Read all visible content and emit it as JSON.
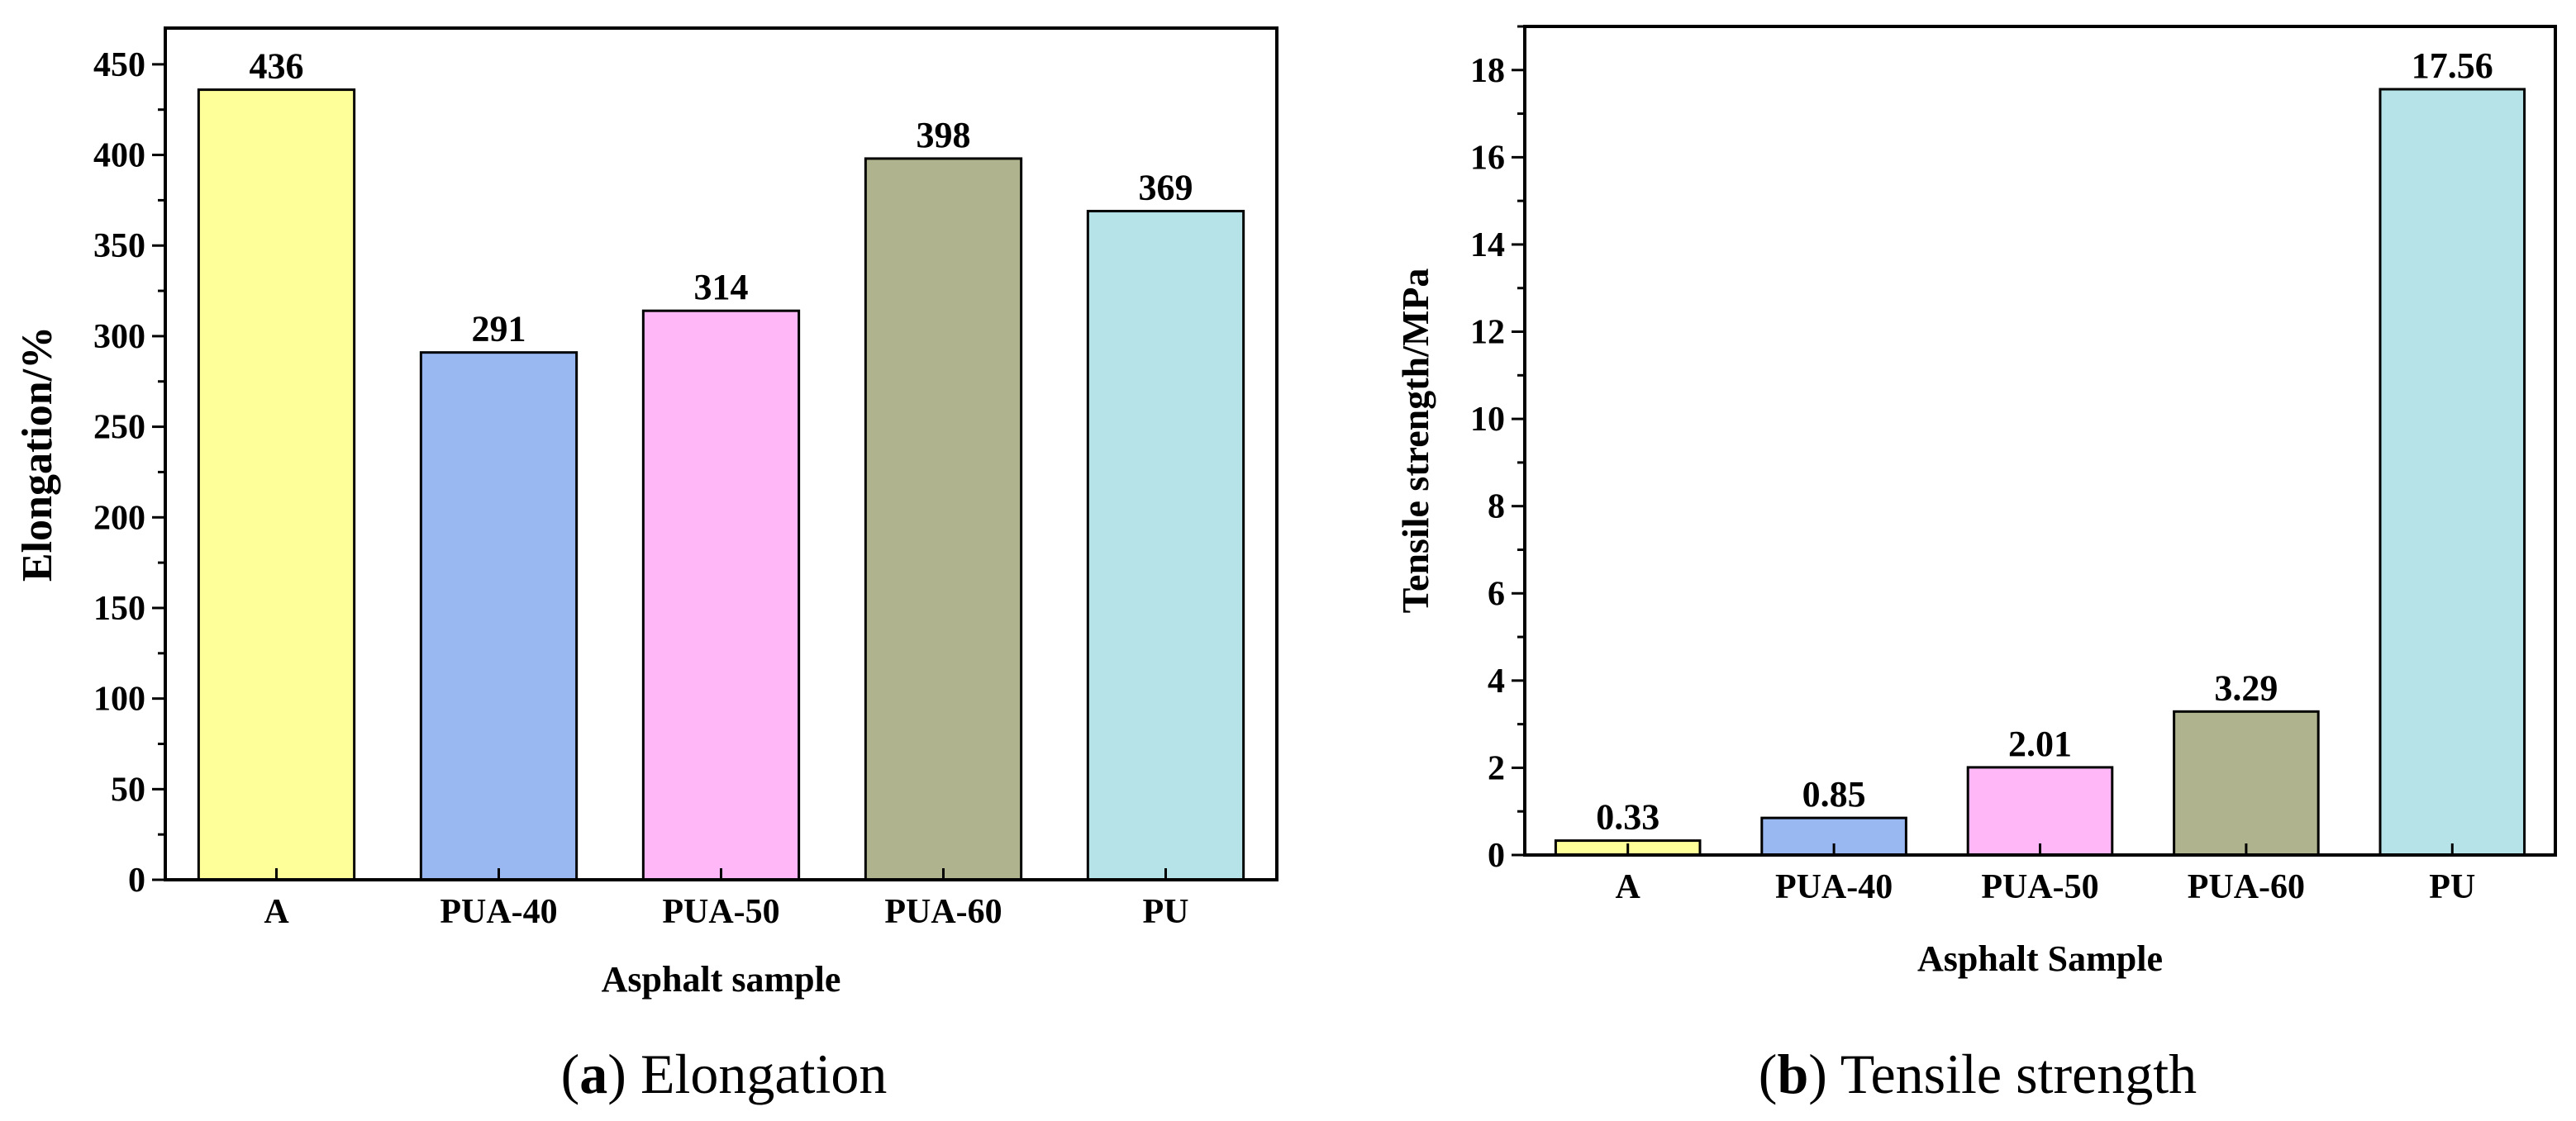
{
  "chart_data": [
    {
      "type": "bar",
      "caption_letter": "a",
      "caption_title": "Elongation",
      "xlabel": "Asphalt sample",
      "ylabel": "Elongation/%",
      "ylim": [
        0,
        470
      ],
      "yticks": [
        0,
        50,
        100,
        150,
        200,
        250,
        300,
        350,
        400,
        450
      ],
      "categories": [
        "A",
        "PUA-40",
        "PUA-50",
        "PUA-60",
        "PU"
      ],
      "values": [
        436,
        291,
        314,
        398,
        369
      ],
      "value_labels": [
        "436",
        "291",
        "314",
        "398",
        "369"
      ],
      "colors": [
        "#ffff99",
        "#99b8f2",
        "#ffb7f8",
        "#b0b48e",
        "#b6e3e8"
      ]
    },
    {
      "type": "bar",
      "caption_letter": "b",
      "caption_title": "Tensile strength",
      "xlabel": "Asphalt Sample",
      "ylabel": "Tensile strength/MPa",
      "ylim": [
        0,
        19
      ],
      "yticks": [
        0,
        2,
        4,
        6,
        8,
        10,
        12,
        14,
        16,
        18
      ],
      "categories": [
        "A",
        "PUA-40",
        "PUA-50",
        "PUA-60",
        "PU"
      ],
      "values": [
        0.33,
        0.85,
        2.01,
        3.29,
        17.56
      ],
      "value_labels": [
        "0.33",
        "0.85",
        "2.01",
        "3.29",
        "17.56"
      ],
      "colors": [
        "#ffff99",
        "#99b8f2",
        "#ffb7f8",
        "#b0b48e",
        "#b6e3e8"
      ]
    }
  ]
}
